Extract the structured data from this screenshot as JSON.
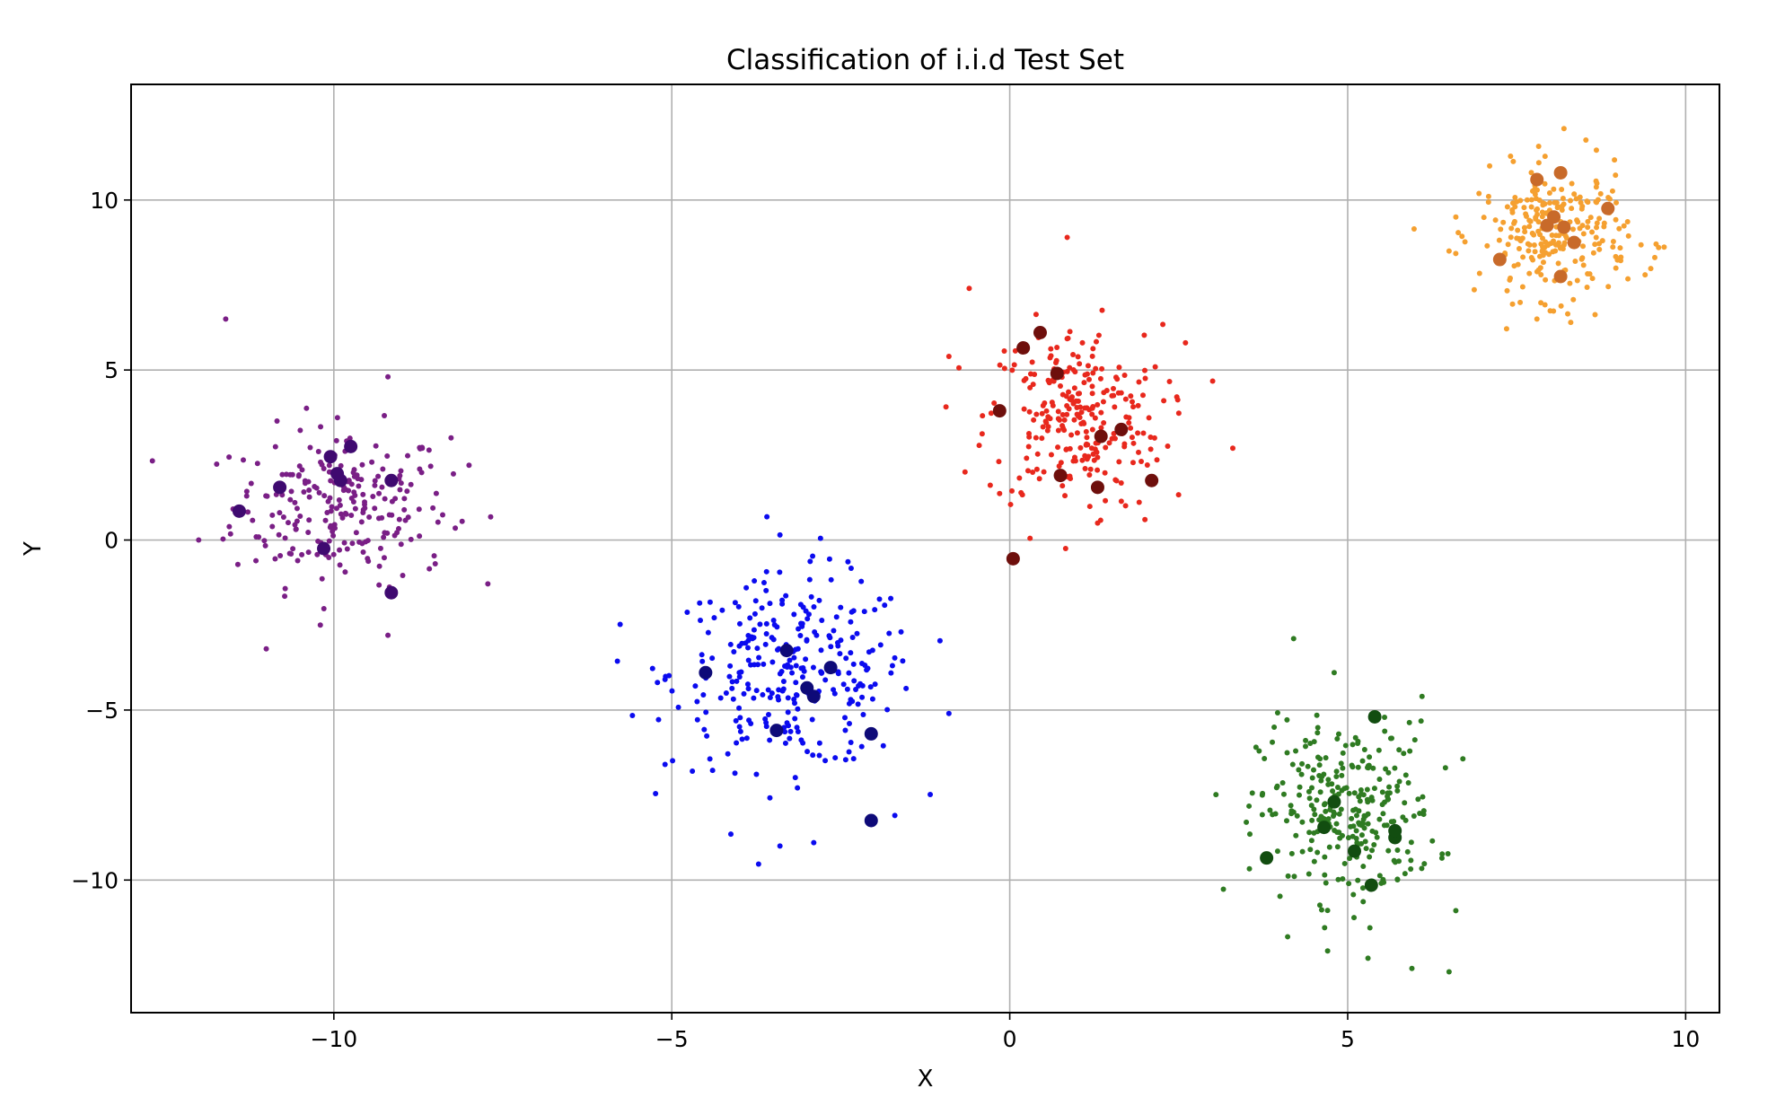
{
  "chart_data": {
    "type": "scatter",
    "title": "Classification of i.i.d Test Set",
    "xlabel": "X",
    "ylabel": "Y",
    "xlim": [
      -13,
      10.5
    ],
    "ylim": [
      -13.9,
      13.4
    ],
    "grid": true,
    "legend": "none",
    "x_ticks": [
      -10,
      -5,
      0,
      5,
      10
    ],
    "x_tick_labels": [
      "−10",
      "−5",
      "0",
      "5",
      "10"
    ],
    "y_ticks": [
      -10,
      -5,
      0,
      5,
      10
    ],
    "y_tick_labels": [
      "−10",
      "−5",
      "0",
      "5",
      "10"
    ],
    "clusters": [
      {
        "point_color": "#7a1f86",
        "highlight_color": "#3f0a70",
        "center": [
          -9.9,
          1.0
        ],
        "spread": [
          0.8,
          1.15
        ],
        "n_points": 240,
        "points": [
          [
            -11.6,
            6.5
          ],
          [
            -12.0,
            0.0
          ],
          [
            -11.0,
            -3.2
          ],
          [
            -8.0,
            2.2
          ],
          [
            -9.2,
            -2.8
          ],
          [
            -9.2,
            4.8
          ],
          [
            -10.2,
            -2.5
          ],
          [
            -8.5,
            -0.7
          ]
        ],
        "highlighted": [
          [
            -11.4,
            0.85
          ],
          [
            -10.8,
            1.55
          ],
          [
            -10.05,
            2.45
          ],
          [
            -9.95,
            1.95
          ],
          [
            -9.9,
            1.75
          ],
          [
            -9.75,
            2.75
          ],
          [
            -10.15,
            -0.25
          ],
          [
            -9.15,
            1.75
          ],
          [
            -9.15,
            -1.55
          ]
        ]
      },
      {
        "point_color": "#0b0bef",
        "highlight_color": "#0e0a78",
        "center": [
          -3.2,
          -3.9
        ],
        "spread": [
          0.9,
          1.4
        ],
        "n_points": 290,
        "points": [
          [
            -5.1,
            -6.6
          ],
          [
            -5.1,
            -4.1
          ],
          [
            -3.4,
            0.15
          ],
          [
            -2.8,
            0.05
          ],
          [
            -3.4,
            -9.0
          ],
          [
            -2.9,
            -8.9
          ],
          [
            -0.9,
            -5.1
          ],
          [
            -1.7,
            -8.1
          ]
        ],
        "highlighted": [
          [
            -4.5,
            -3.9
          ],
          [
            -3.3,
            -3.25
          ],
          [
            -2.65,
            -3.75
          ],
          [
            -3.0,
            -4.35
          ],
          [
            -2.9,
            -4.6
          ],
          [
            -3.45,
            -5.6
          ],
          [
            -2.05,
            -5.7
          ],
          [
            -2.05,
            -8.25
          ]
        ]
      },
      {
        "point_color": "#e8281d",
        "highlight_color": "#6e0f0c",
        "center": [
          0.95,
          3.6
        ],
        "spread": [
          0.65,
          1.35
        ],
        "n_points": 260,
        "points": [
          [
            -0.6,
            7.4
          ],
          [
            0.85,
            8.9
          ],
          [
            3.3,
            2.7
          ],
          [
            -0.9,
            5.4
          ],
          [
            2.6,
            5.8
          ],
          [
            0.3,
            0.05
          ],
          [
            1.3,
            0.5
          ],
          [
            2.0,
            0.6
          ]
        ],
        "highlighted": [
          [
            -0.15,
            3.8
          ],
          [
            0.2,
            5.65
          ],
          [
            0.45,
            6.1
          ],
          [
            0.7,
            4.9
          ],
          [
            1.35,
            3.05
          ],
          [
            1.65,
            3.25
          ],
          [
            0.75,
            1.9
          ],
          [
            1.3,
            1.55
          ],
          [
            2.1,
            1.75
          ],
          [
            0.05,
            -0.55
          ]
        ]
      },
      {
        "point_color": "#2f7b22",
        "highlight_color": "#124d10",
        "center": [
          5.0,
          -8.0
        ],
        "spread": [
          0.65,
          1.3
        ],
        "n_points": 280,
        "points": [
          [
            4.2,
            -2.9
          ],
          [
            4.8,
            -3.9
          ],
          [
            5.95,
            -12.6
          ],
          [
            6.5,
            -12.7
          ],
          [
            3.5,
            -8.3
          ],
          [
            6.6,
            -10.9
          ],
          [
            5.3,
            -12.3
          ],
          [
            6.1,
            -4.6
          ]
        ],
        "highlighted": [
          [
            5.4,
            -5.2
          ],
          [
            4.8,
            -7.7
          ],
          [
            4.65,
            -8.45
          ],
          [
            5.1,
            -9.15
          ],
          [
            5.7,
            -8.75
          ],
          [
            5.7,
            -8.55
          ],
          [
            3.8,
            -9.35
          ],
          [
            5.35,
            -10.15
          ]
        ]
      },
      {
        "point_color": "#f5a030",
        "highlight_color": "#c86a2a",
        "center": [
          8.05,
          9.0
        ],
        "spread": [
          0.55,
          0.95
        ],
        "n_points": 260,
        "points": [
          [
            8.2,
            12.1
          ],
          [
            8.3,
            6.4
          ],
          [
            9.6,
            8.6
          ],
          [
            9.4,
            7.8
          ],
          [
            6.5,
            8.5
          ],
          [
            6.6,
            9.5
          ],
          [
            7.1,
            11.0
          ],
          [
            7.8,
            6.5
          ]
        ],
        "highlighted": [
          [
            7.8,
            10.6
          ],
          [
            8.15,
            10.8
          ],
          [
            8.85,
            9.75
          ],
          [
            7.95,
            9.25
          ],
          [
            8.05,
            9.5
          ],
          [
            8.2,
            9.2
          ],
          [
            8.35,
            8.75
          ],
          [
            7.25,
            8.25
          ],
          [
            8.15,
            7.75
          ]
        ]
      }
    ]
  }
}
